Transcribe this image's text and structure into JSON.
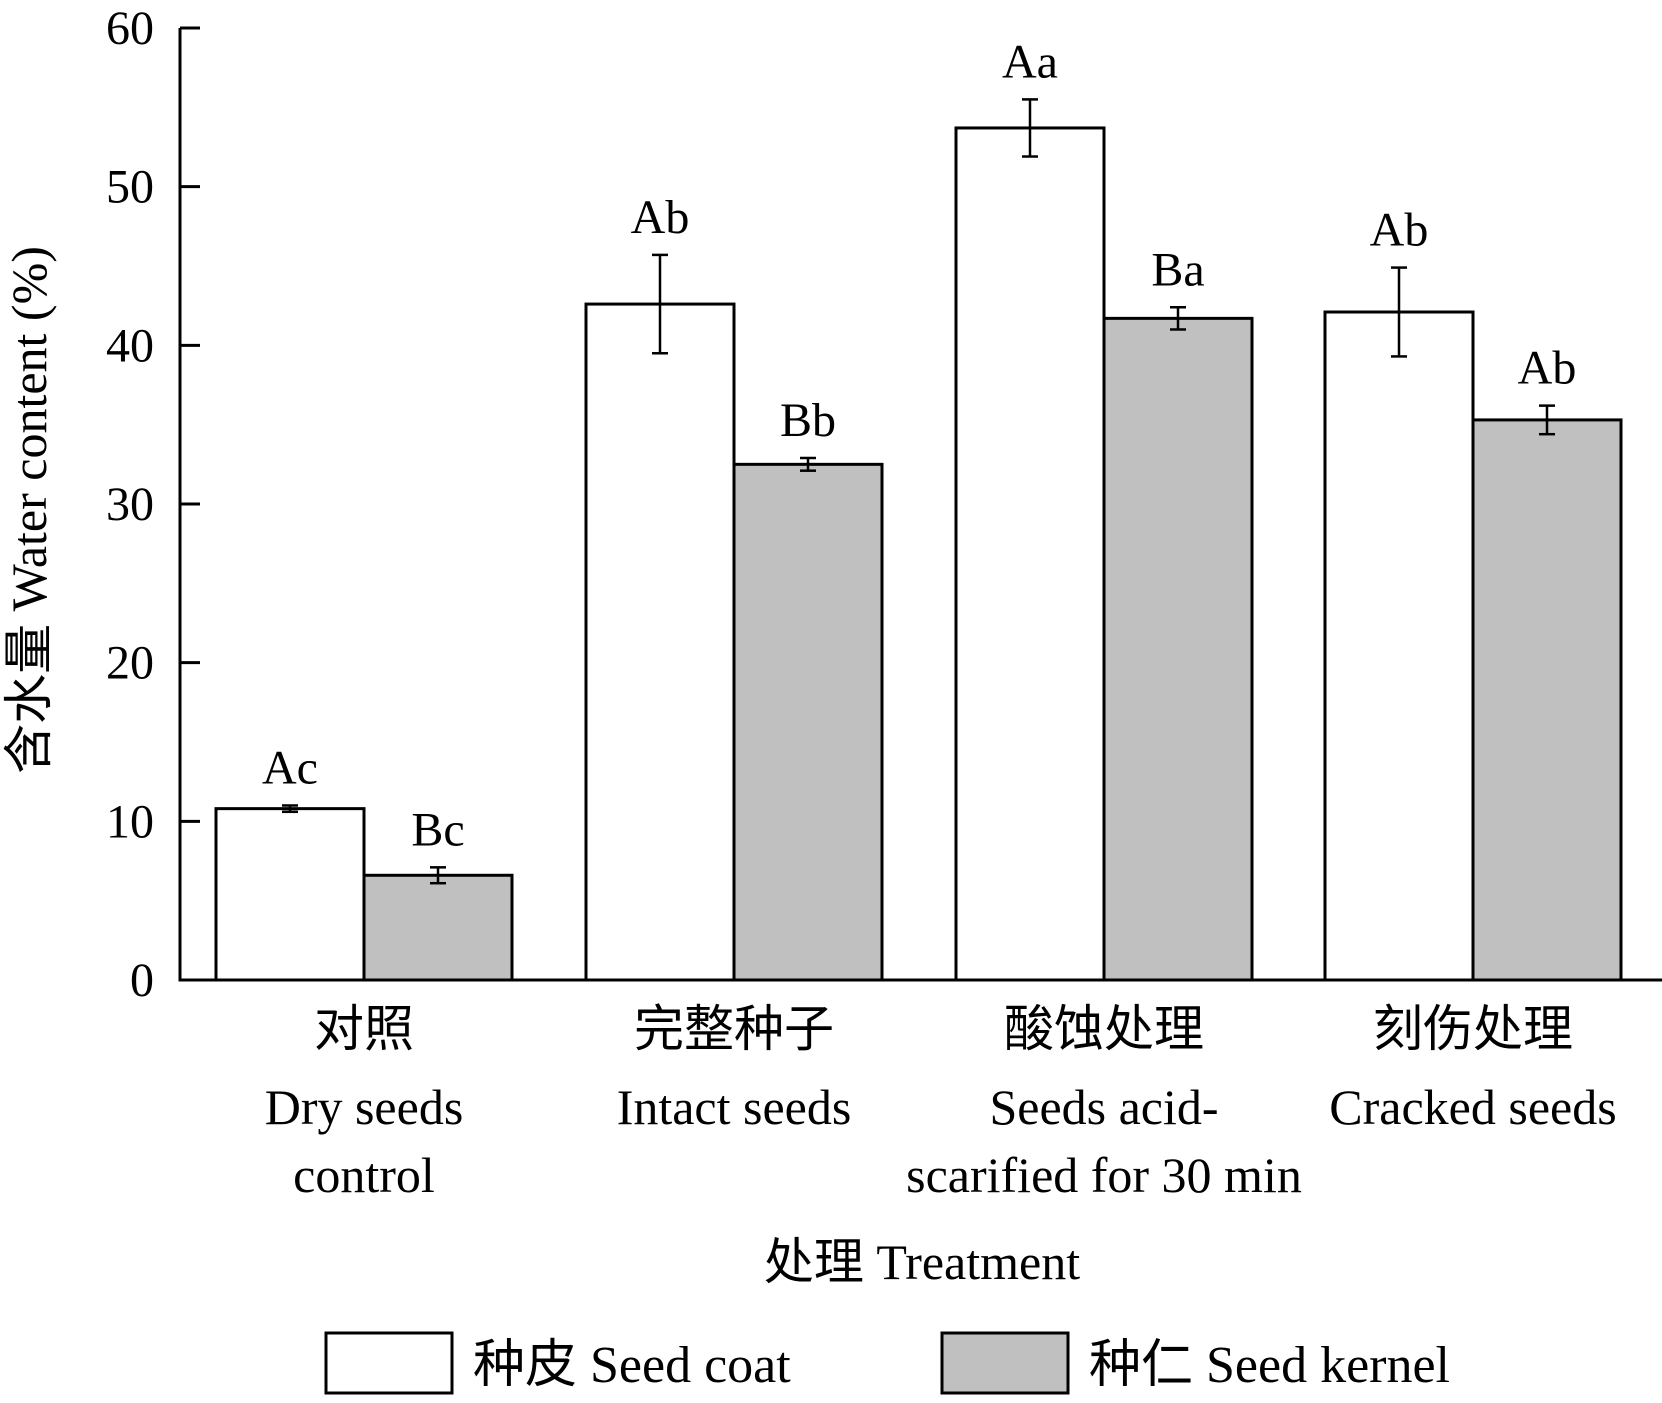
{
  "chart_data": {
    "type": "bar",
    "ylabel": "含水量  Water content (%)",
    "xlabel": "处理  Treatment",
    "ylim": [
      0,
      60
    ],
    "yticks": [
      0,
      10,
      20,
      30,
      40,
      50,
      60
    ],
    "grid": false,
    "legend_position": "bottom",
    "categories": [
      {
        "zh": "对照",
        "en": [
          "Dry seeds",
          "control"
        ]
      },
      {
        "zh": "完整种子",
        "en": [
          "Intact seeds"
        ]
      },
      {
        "zh": "酸蚀处理",
        "en": [
          "Seeds acid-",
          "scarified for 30 min"
        ]
      },
      {
        "zh": "刻伤处理",
        "en": [
          "Cracked seeds"
        ]
      }
    ],
    "series": [
      {
        "name": "种皮  Seed coat",
        "color": "#ffffff",
        "values": [
          10.8,
          42.6,
          53.7,
          42.1
        ],
        "errors": [
          0.2,
          3.1,
          1.8,
          2.8
        ],
        "labels": [
          "Ac",
          "Ab",
          "Aa",
          "Ab"
        ]
      },
      {
        "name": "种仁  Seed kernel",
        "color": "#c0c0c0",
        "values": [
          6.6,
          32.5,
          41.7,
          35.3
        ],
        "errors": [
          0.5,
          0.4,
          0.7,
          0.9
        ],
        "labels": [
          "Bc",
          "Bb",
          "Ba",
          "Ab"
        ]
      }
    ]
  }
}
